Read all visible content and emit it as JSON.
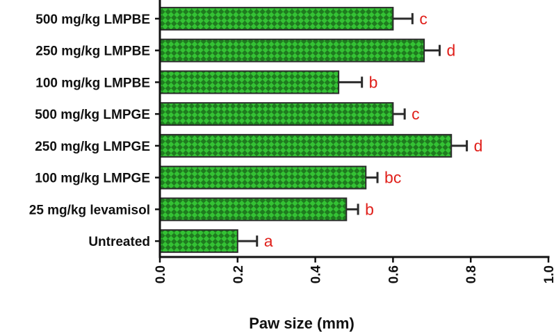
{
  "chart_data": {
    "type": "bar",
    "orientation": "horizontal",
    "xlabel": "Paw size (mm)",
    "xlim": [
      0.0,
      1.0
    ],
    "xticks": [
      "0.0",
      "0.2",
      "0.4",
      "0.6",
      "0.8",
      "1.0"
    ],
    "tick_values": [
      0.0,
      0.2,
      0.4,
      0.6,
      0.8,
      1.0
    ],
    "categories": [
      "500 mg/kg LMPBE",
      "250 mg/kg LMPBE",
      "100 mg/kg LMPBE",
      "500 mg/kg LMPGE",
      "250 mg/kg LMPGE",
      "100 mg/kg LMPGE",
      "25 mg/kg levamisol",
      "Untreated"
    ],
    "values": [
      0.6,
      0.68,
      0.46,
      0.6,
      0.75,
      0.53,
      0.48,
      0.2
    ],
    "errors": [
      0.05,
      0.04,
      0.06,
      0.03,
      0.04,
      0.03,
      0.03,
      0.05
    ],
    "significance": [
      "c",
      "d",
      "b",
      "c",
      "d",
      "bc",
      "b",
      "a"
    ],
    "grid": false,
    "legend": "none",
    "colors": {
      "bar_fill": "#1f7a1f",
      "bar_pattern": "#34c234",
      "bar_edge": "#2b2b2b",
      "significance": "#e0201b",
      "axis": "#111111"
    }
  }
}
